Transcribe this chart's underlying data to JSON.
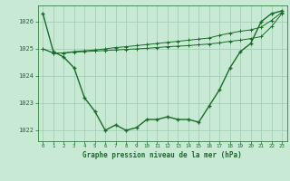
{
  "title": "Graphe pression niveau de la mer (hPa)",
  "background_color": "#c8ead5",
  "grid_color": "#9fc8b0",
  "line_color": "#1a6b2a",
  "xlim": [
    -0.5,
    23.5
  ],
  "ylim": [
    1021.6,
    1026.6
  ],
  "yticks": [
    1022,
    1023,
    1024,
    1025,
    1026
  ],
  "xticks": [
    0,
    1,
    2,
    3,
    4,
    5,
    6,
    7,
    8,
    9,
    10,
    11,
    12,
    13,
    14,
    15,
    16,
    17,
    18,
    19,
    20,
    21,
    22,
    23
  ],
  "series1": [
    1026.3,
    1024.9,
    1024.7,
    1024.3,
    1023.2,
    1022.7,
    1022.0,
    1022.2,
    1022.0,
    1022.1,
    1022.4,
    1022.4,
    1022.5,
    1022.4,
    1022.4,
    1022.3,
    1022.9,
    1023.5,
    1024.3,
    1024.9,
    1025.2,
    1026.0,
    1026.3,
    1026.4
  ],
  "series2": [
    1025.0,
    1024.85,
    1024.85,
    1024.9,
    1024.93,
    1024.96,
    1025.0,
    1025.05,
    1025.08,
    1025.12,
    1025.16,
    1025.2,
    1025.24,
    1025.28,
    1025.32,
    1025.36,
    1025.4,
    1025.5,
    1025.58,
    1025.65,
    1025.7,
    1025.8,
    1026.05,
    1026.35
  ],
  "series3": [
    1025.0,
    1024.85,
    1024.85,
    1024.88,
    1024.9,
    1024.92,
    1024.94,
    1024.96,
    1024.98,
    1025.0,
    1025.02,
    1025.05,
    1025.08,
    1025.1,
    1025.12,
    1025.15,
    1025.18,
    1025.22,
    1025.28,
    1025.32,
    1025.38,
    1025.45,
    1025.82,
    1026.3
  ]
}
